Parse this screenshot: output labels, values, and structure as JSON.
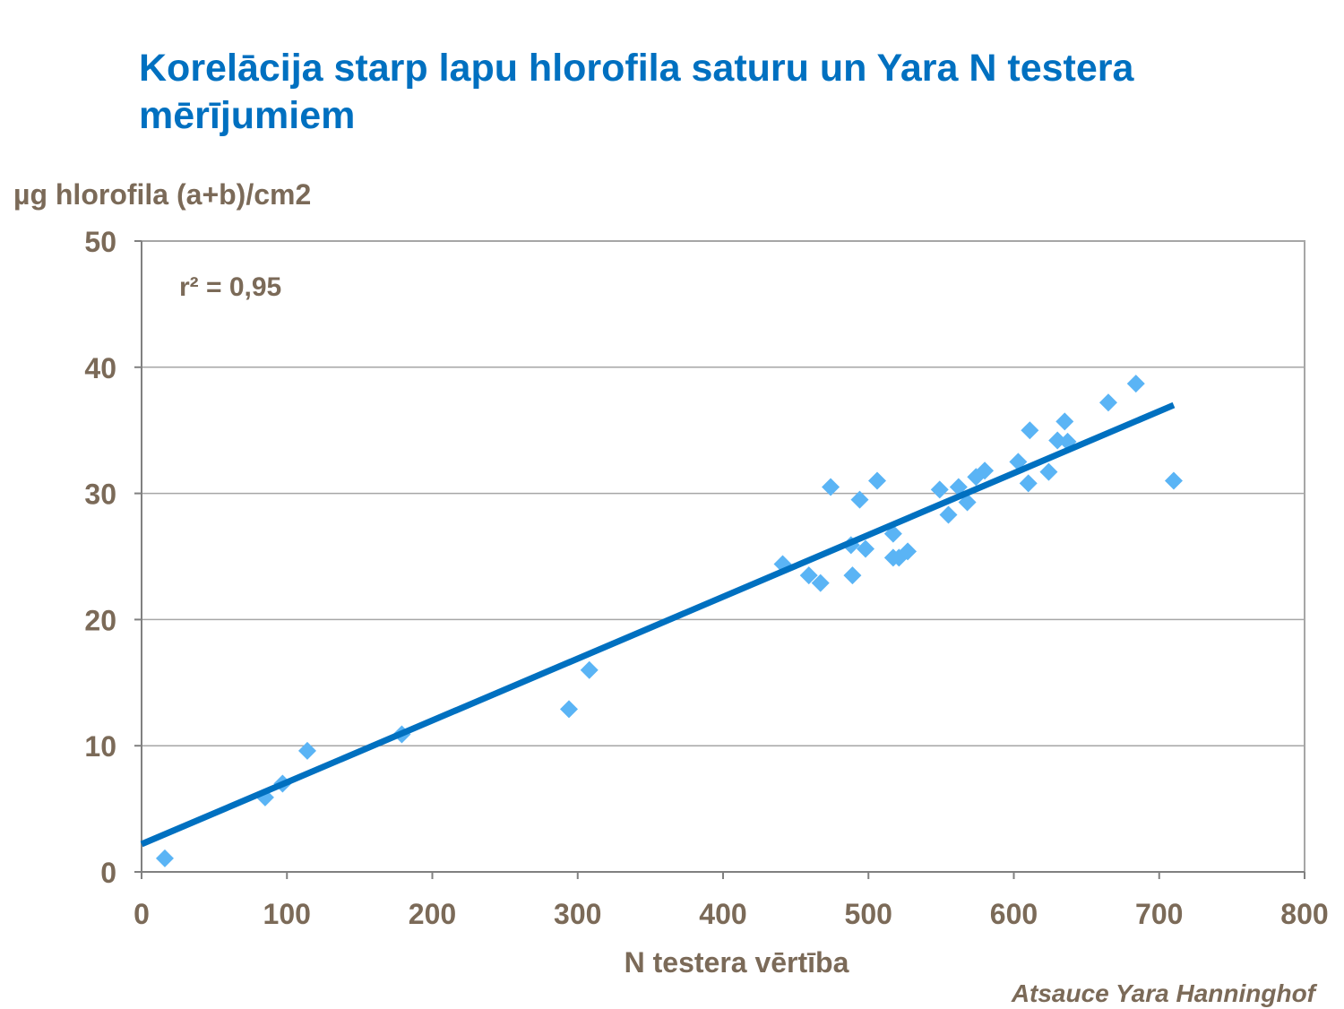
{
  "chart_data": {
    "type": "scatter",
    "title": "Korelācija starp lapu hlorofila saturu un Yara N testera mērījumiem",
    "y_label": "µg hlorofila (a+b)/cm2",
    "x_label": "N testera vērtība",
    "annotation": "r² = 0,95",
    "source": "Atsauce Yara Hanninghof",
    "xlim": [
      0,
      800
    ],
    "xticks": [
      0,
      100,
      200,
      300,
      400,
      500,
      600,
      700,
      800
    ],
    "ylim": [
      0,
      50
    ],
    "yticks": [
      0,
      10,
      20,
      30,
      40,
      50
    ],
    "grid": true,
    "series": [
      {
        "color": "#5ab4f5",
        "x": [
          16,
          85,
          97,
          114,
          179,
          294,
          308,
          441,
          459,
          467,
          474,
          488,
          489,
          494,
          498,
          506,
          517,
          517,
          521,
          527,
          549,
          555,
          562,
          568,
          574,
          580,
          603,
          610,
          611,
          624,
          630,
          635,
          637,
          665,
          684,
          710
        ],
        "values": [
          1.07,
          5.9,
          7.0,
          9.6,
          10.9,
          12.9,
          16.0,
          24.4,
          23.5,
          22.9,
          30.5,
          25.9,
          23.5,
          29.5,
          25.6,
          31.0,
          26.8,
          24.9,
          24.9,
          25.4,
          30.3,
          28.3,
          30.5,
          29.3,
          31.3,
          31.8,
          32.5,
          30.8,
          35.0,
          31.7,
          34.2,
          35.7,
          34.1,
          37.2,
          38.7,
          31.0
        ]
      },
      {
        "type": "line",
        "color": "#0070c0",
        "x": [
          0,
          710
        ],
        "values": [
          2.2,
          37.0
        ]
      }
    ]
  }
}
